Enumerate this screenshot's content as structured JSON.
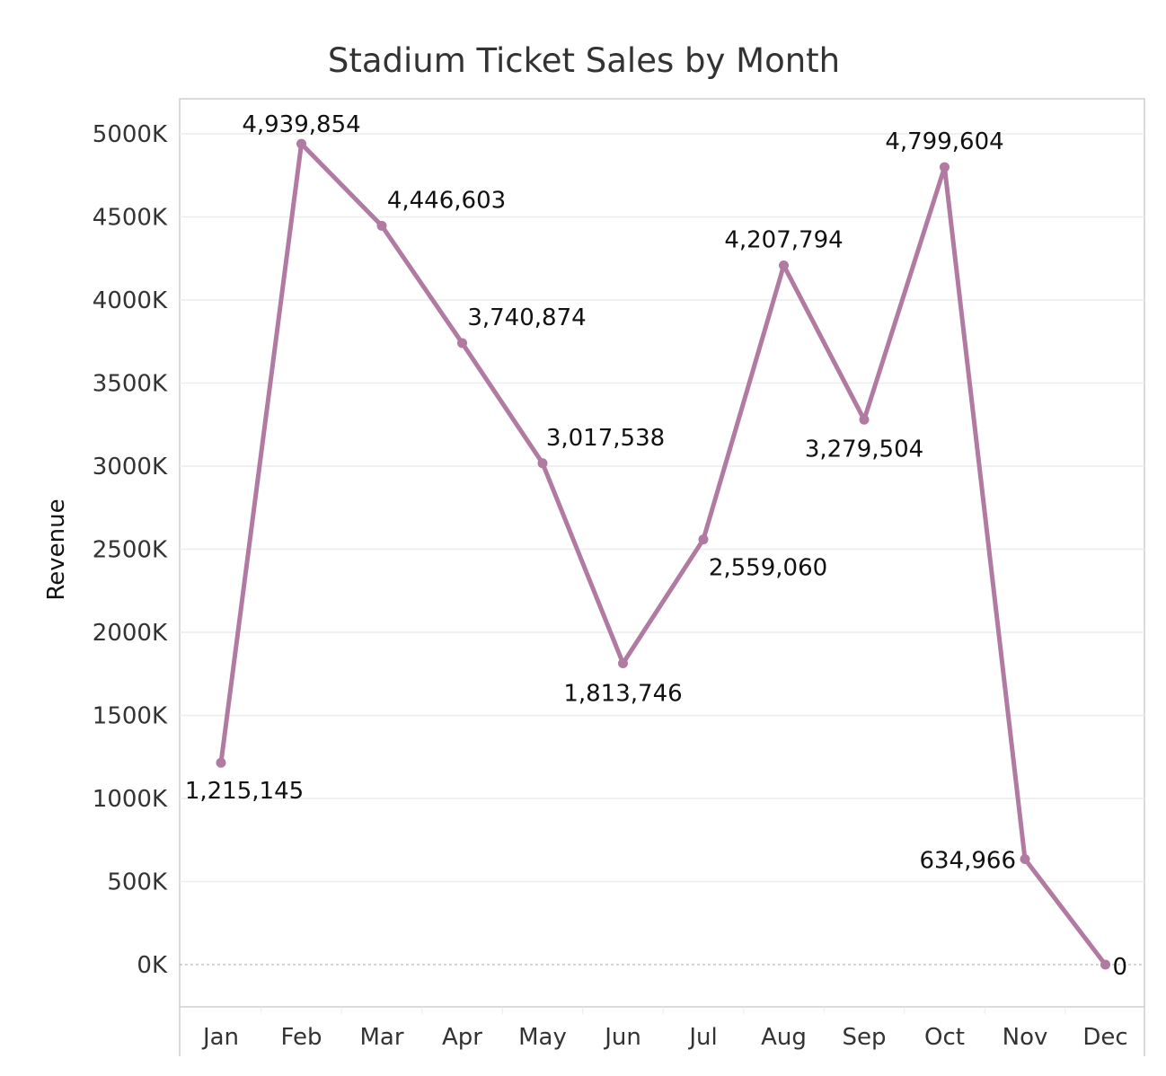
{
  "chart_data": {
    "type": "line",
    "title": "Stadium Ticket Sales by Month",
    "xlabel": "",
    "ylabel": "Revenue",
    "categories": [
      "Jan",
      "Feb",
      "Mar",
      "Apr",
      "May",
      "Jun",
      "Jul",
      "Aug",
      "Sep",
      "Oct",
      "Nov",
      "Dec"
    ],
    "series": [
      {
        "values": [
          1215145,
          4939854,
          4446603,
          3740874,
          3017538,
          1813746,
          2559060,
          4207794,
          3279504,
          4799604,
          634966,
          0
        ],
        "data_labels": [
          "1,215,145",
          "4,939,854",
          "4,446,603",
          "3,740,874",
          "3,017,538",
          "1,813,746",
          "2,559,060",
          "4,207,794",
          "3,279,504",
          "4,799,604",
          "634,966",
          "0"
        ],
        "color": "#b07aa1"
      }
    ],
    "ylim": [
      0,
      5000000
    ],
    "yticks": [
      0,
      500000,
      1000000,
      1500000,
      2000000,
      2500000,
      3000000,
      3500000,
      4000000,
      4500000,
      5000000
    ],
    "ytick_labels": [
      "0K",
      "500K",
      "1000K",
      "1500K",
      "2000K",
      "2500K",
      "3000K",
      "3500K",
      "4000K",
      "4500K",
      "5000K"
    ],
    "grid": true,
    "legend": "none",
    "colors": {
      "grid": "#ececec",
      "axis": "#cfcfcf",
      "zero_line": "#aaaaaa"
    }
  }
}
